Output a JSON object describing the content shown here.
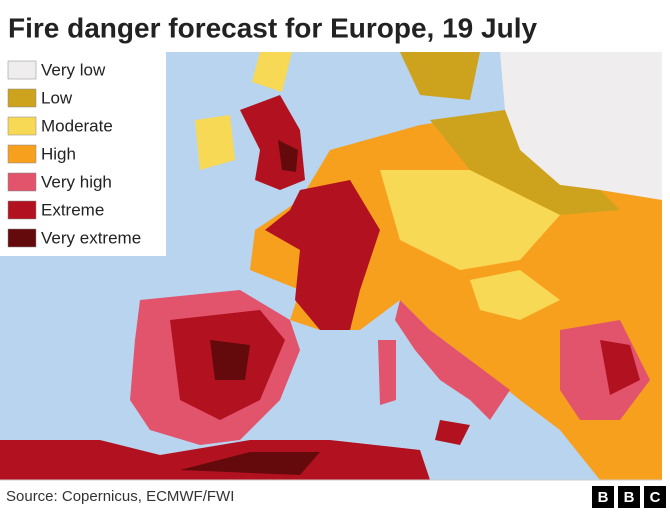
{
  "title": "Fire danger forecast for Europe, 19 July",
  "legend": [
    {
      "label": "Very low",
      "color": "#efeded"
    },
    {
      "label": "Low",
      "color": "#cda21c"
    },
    {
      "label": "Moderate",
      "color": "#f8d955"
    },
    {
      "label": "High",
      "color": "#f6a01e"
    },
    {
      "label": "Very high",
      "color": "#e2536c"
    },
    {
      "label": "Extreme",
      "color": "#b2121f"
    },
    {
      "label": "Very extreme",
      "color": "#650a0c"
    }
  ],
  "source": "Source: Copernicus, ECMWF/FWI",
  "logo": [
    "B",
    "B",
    "C"
  ]
}
